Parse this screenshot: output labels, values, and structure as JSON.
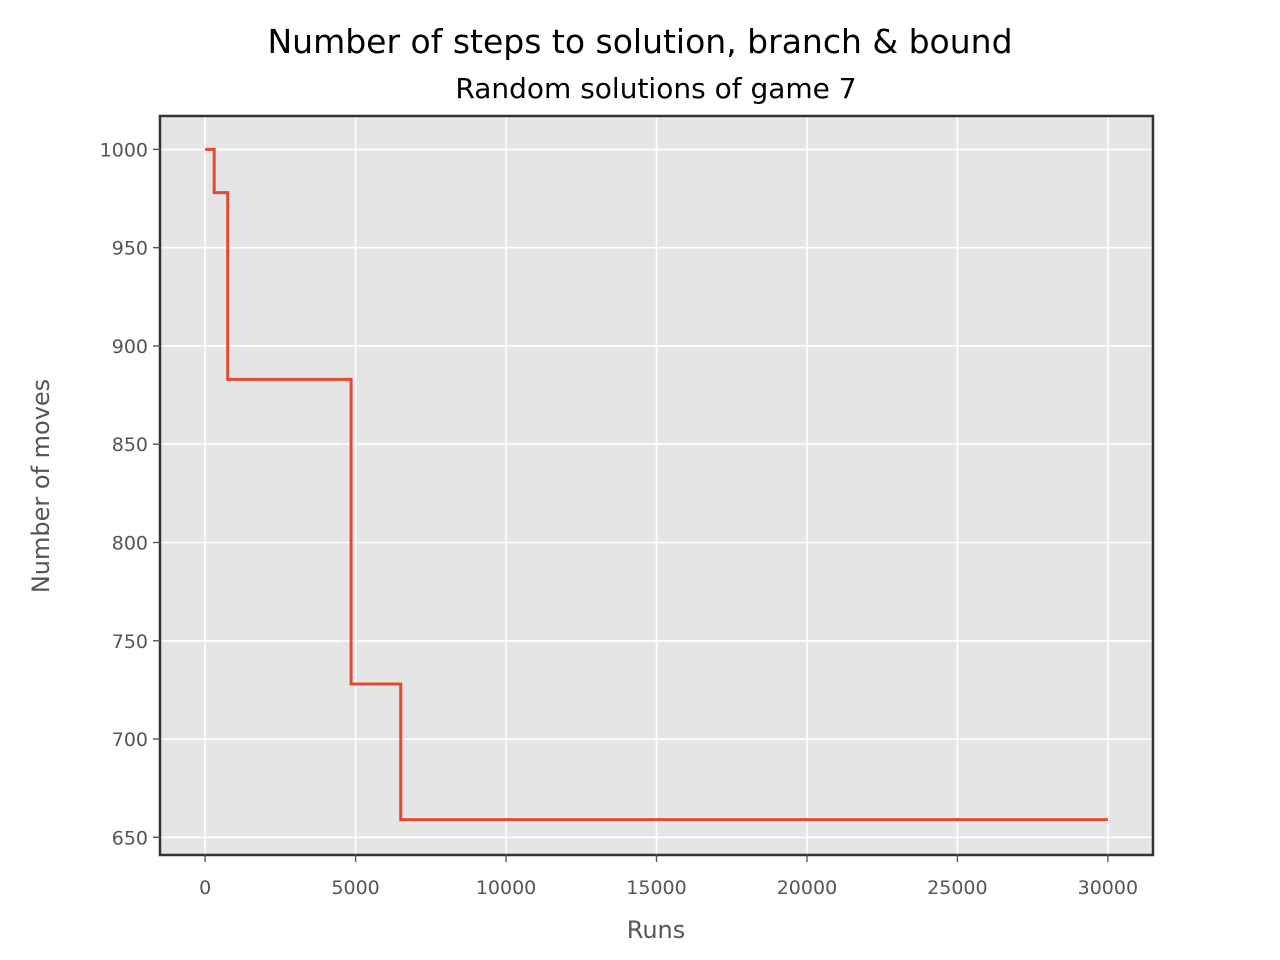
{
  "chart_data": {
    "type": "line",
    "step": "post",
    "title": "Number of steps to solution, branch & bound",
    "subtitle": "Random solutions of game 7",
    "xlabel": "Runs",
    "ylabel": "Number of moves",
    "xlim": [
      -1500,
      31500
    ],
    "ylim": [
      641,
      1017
    ],
    "xticks": [
      0,
      5000,
      10000,
      15000,
      20000,
      25000,
      30000
    ],
    "yticks": [
      650,
      700,
      750,
      800,
      850,
      900,
      950,
      1000
    ],
    "grid": true,
    "legend": null,
    "series": [
      {
        "color": "#E24A33",
        "x": [
          0,
          300,
          750,
          4850,
          6500,
          30000
        ],
        "y": [
          1000,
          978,
          883,
          728,
          659,
          659
        ]
      }
    ]
  },
  "colors": {
    "plot_background": "#E5E5E5",
    "grid": "#FFFFFF",
    "axes_edge": "#333333",
    "tick_label": "#555555",
    "line": "#E24A33"
  }
}
